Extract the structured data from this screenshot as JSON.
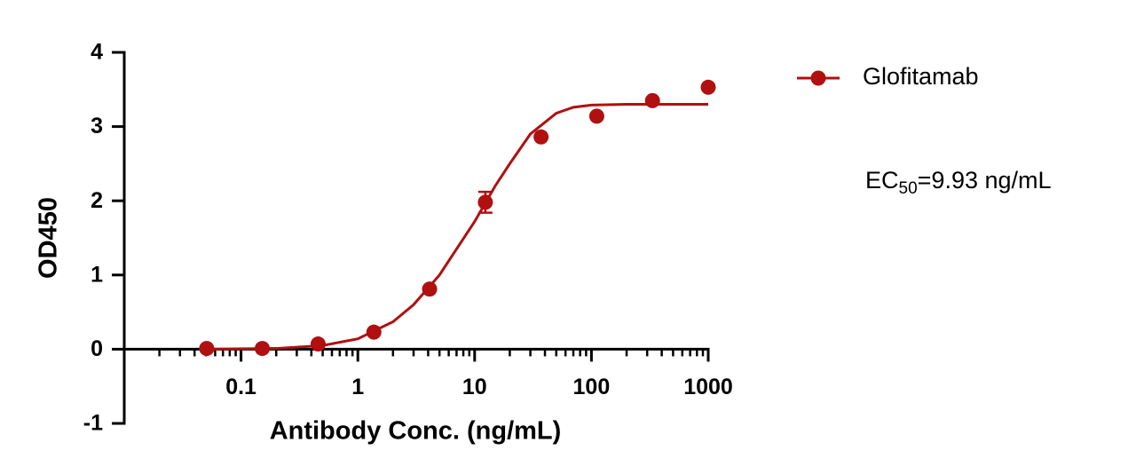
{
  "chart_data": {
    "type": "scatter",
    "x_label": "Antibody Conc. (ng/mL)",
    "y_label": "OD450",
    "x_scale": "log",
    "xlim": [
      0.01,
      1000
    ],
    "xticks": [
      0.1,
      1,
      10,
      100,
      1000
    ],
    "xminorticks": [
      0.02,
      0.03,
      0.04,
      0.05,
      0.06,
      0.07,
      0.08,
      0.09,
      0.2,
      0.3,
      0.4,
      0.5,
      0.6,
      0.7,
      0.8,
      0.9,
      2,
      3,
      4,
      5,
      6,
      7,
      8,
      9,
      20,
      30,
      40,
      50,
      60,
      70,
      80,
      90,
      200,
      300,
      400,
      500,
      600,
      700,
      800,
      900
    ],
    "ylim": [
      -1,
      4
    ],
    "yticks": [
      -1,
      0,
      1,
      2,
      3,
      4
    ],
    "series": [
      {
        "name": "Glofitamab",
        "color": "#b01010",
        "x": [
          0.0508,
          0.152,
          0.457,
          1.372,
          4.115,
          12.35,
          37.04,
          111.1,
          333.3,
          1000
        ],
        "values": [
          0.01,
          0.01,
          0.07,
          0.23,
          0.81,
          1.98,
          2.86,
          3.14,
          3.35,
          3.53
        ],
        "errors": [
          null,
          null,
          null,
          null,
          null,
          0.14,
          null,
          null,
          null,
          null
        ],
        "fit": {
          "x": [
            0.05,
            0.2,
            0.5,
            1,
            2,
            3,
            5,
            7,
            10,
            15,
            20,
            30,
            50,
            70,
            100,
            200,
            1000
          ],
          "values": [
            0,
            0.01,
            0.05,
            0.14,
            0.37,
            0.6,
            1.0,
            1.35,
            1.72,
            2.2,
            2.5,
            2.9,
            3.18,
            3.26,
            3.29,
            3.3,
            3.3
          ]
        }
      }
    ],
    "annotation": {
      "main": "EC",
      "sub": "50",
      "rest": "=9.93 ng/mL"
    }
  }
}
